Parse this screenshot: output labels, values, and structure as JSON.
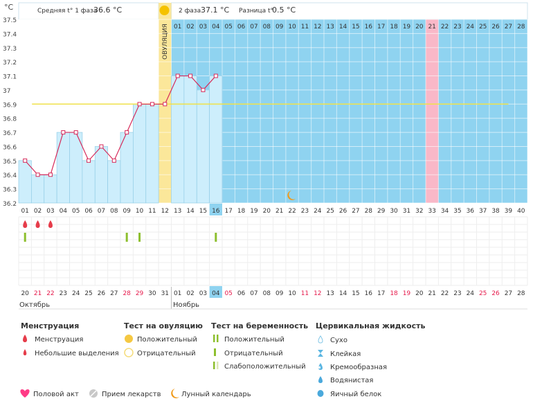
{
  "header": {
    "unit_label": "°С",
    "phase1_label": "Средняя t° 1 фаза",
    "phase1_value": "36.6 °С",
    "phase2_label": "2 фаза",
    "phase2_value": "37.1 °С",
    "diff_label": "Разница t°",
    "diff_value": "0.5 °С",
    "ovulation_label": "ОВУЛЯЦИЯ"
  },
  "colors": {
    "phase1_bg": "#ffffff",
    "phase2_bg": "#8fd3f0",
    "bar_fill": "#cdeefc",
    "bar_stroke": "#93cde6",
    "line": "#d62a5a",
    "average_line": "#f0e24a",
    "ovulation": "#fbe79a",
    "menses_next": "#f9b8c8",
    "today": "#8fd3f0",
    "drop": "#e63c4a",
    "test_positive": "#8dbf2e",
    "red_date": "#e6194b"
  },
  "chart_data": {
    "type": "bar",
    "title": "",
    "xlabel": "",
    "ylabel": "°С",
    "ylim": [
      36.2,
      37.5
    ],
    "y_ticks": [
      "37.5",
      "37.4",
      "37.3",
      "37.2",
      "37.1",
      "37",
      "36.9",
      "36.8",
      "36.7",
      "36.6",
      "36.5",
      "36.4",
      "36.3",
      "36.2"
    ],
    "cycle_days": [
      "01",
      "02",
      "03",
      "04",
      "05",
      "06",
      "07",
      "08",
      "09",
      "10",
      "11",
      "12",
      "13",
      "14",
      "15",
      "16",
      "17",
      "18",
      "19",
      "20",
      "21",
      "22",
      "23",
      "24",
      "25",
      "26",
      "27",
      "28",
      "29",
      "30",
      "31",
      "32",
      "33",
      "34",
      "35",
      "36",
      "37",
      "38",
      "39",
      "40"
    ],
    "phase2_top_days": [
      "01",
      "02",
      "03",
      "04",
      "05",
      "06",
      "07",
      "08",
      "09",
      "10",
      "11",
      "12",
      "13",
      "14",
      "15",
      "16",
      "17",
      "18",
      "19",
      "20",
      "21",
      "22",
      "23",
      "24",
      "25",
      "26",
      "27",
      "28"
    ],
    "temperatures": [
      36.5,
      36.4,
      36.4,
      36.7,
      36.7,
      36.5,
      36.6,
      36.5,
      36.7,
      36.9,
      36.9,
      36.9,
      37.1,
      37.1,
      37.0,
      37.1
    ],
    "average_line": 36.9,
    "ovulation_day": 12,
    "today_day": 16,
    "next_menses_day": 33,
    "moon_day": 22,
    "menstruation_days": [
      1,
      2,
      3
    ],
    "pregnancy_test_days": [
      1,
      9,
      10,
      16
    ],
    "dates": [
      "20",
      "21",
      "22",
      "23",
      "24",
      "25",
      "26",
      "27",
      "28",
      "29",
      "30",
      "31",
      "01",
      "02",
      "03",
      "04",
      "05",
      "06",
      "07",
      "08",
      "09",
      "10",
      "11",
      "12",
      "13",
      "14",
      "15",
      "16",
      "17",
      "18",
      "19",
      "20",
      "21",
      "22",
      "23",
      "24",
      "25",
      "26",
      "27",
      "28"
    ],
    "red_date_indices": [
      1,
      2,
      8,
      9,
      16,
      22,
      23,
      29,
      30,
      36,
      37
    ],
    "months": [
      {
        "label": "Октябрь",
        "start": 0
      },
      {
        "label": "Ноябрь",
        "start": 12
      }
    ]
  },
  "legend": {
    "menstruation": {
      "title": "Менструация",
      "items": [
        "Менструация",
        "Небольшие выделения"
      ]
    },
    "ovulation_test": {
      "title": "Тест на овуляцию",
      "items": [
        "Положительный",
        "Отрицательный"
      ]
    },
    "pregnancy_test": {
      "title": "Тест на беременность",
      "items": [
        "Положительный",
        "Отрицательный",
        "Слабоположительный"
      ]
    },
    "cervical": {
      "title": "Цервикальная жидкость",
      "items": [
        "Сухо",
        "Клейкая",
        "Кремообразная",
        "Водянистая",
        "Яичный белок"
      ]
    },
    "bottom": [
      "Половой акт",
      "Прием лекарств",
      "Лунный календарь"
    ]
  }
}
